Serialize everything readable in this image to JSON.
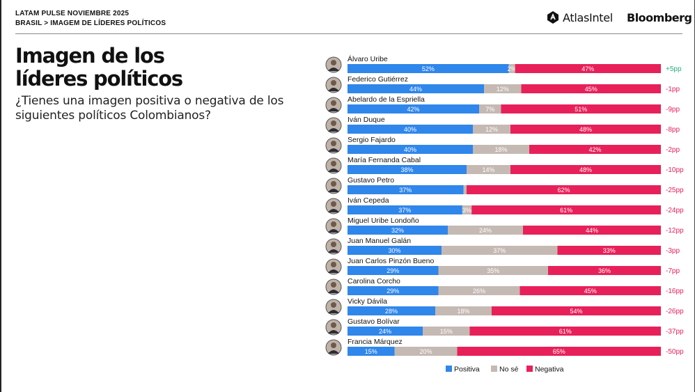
{
  "header": {
    "line1": "LATAM PULSE NOVIEMBRE 2025",
    "line2": "BRASIL > IMAGEM DE LÍDERES POLÍTICOS",
    "brand1": "AtlasIntel",
    "brand2": "Bloomberg"
  },
  "title": "Imagen de los líderes políticos",
  "subtitle": "¿Tienes una imagen positiva o negativa de los siguientes políticos Colombianos?",
  "colors": {
    "positiva": "#2f86eb",
    "no_se": "#c5b9b3",
    "negativa": "#e8205a",
    "net_positive": "#23b07d",
    "net_negative": "#e8205a"
  },
  "chart_data": {
    "type": "bar",
    "orientation": "horizontal",
    "stacked": true,
    "categories": [
      "Álvaro Uribe",
      "Federico Gutiérrez",
      "Abelardo de la Espriella",
      "Iván Duque",
      "Sergio Fajardo",
      "María Fernanda Cabal",
      "Gustavo Petro",
      "Iván Cepeda",
      "Miguel Uribe Londoño",
      "Juan Manuel Galán",
      "Juan Carlos Pinzón Bueno",
      "Carolina Corcho",
      "Vicky Dávila",
      "Gustavo Bolívar",
      "Francia Márquez"
    ],
    "series": [
      {
        "name": "Positiva",
        "values": [
          52,
          44,
          42,
          40,
          40,
          38,
          37,
          37,
          32,
          30,
          29,
          29,
          28,
          24,
          15
        ]
      },
      {
        "name": "No sé",
        "values": [
          2,
          12,
          7,
          12,
          18,
          14,
          1,
          3,
          24,
          37,
          35,
          26,
          18,
          15,
          20
        ]
      },
      {
        "name": "Negativa",
        "values": [
          47,
          45,
          51,
          48,
          42,
          48,
          62,
          61,
          44,
          33,
          36,
          45,
          54,
          61,
          65
        ]
      }
    ],
    "value_labels": [
      [
        "52%",
        "2%",
        "47%"
      ],
      [
        "44%",
        "12%",
        "45%"
      ],
      [
        "42%",
        "7%",
        "51%"
      ],
      [
        "40%",
        "12%",
        "48%"
      ],
      [
        "40%",
        "18%",
        "42%"
      ],
      [
        "38%",
        "14%",
        "48%"
      ],
      [
        "37%",
        "",
        "62%"
      ],
      [
        "37%",
        "3%",
        "61%"
      ],
      [
        "32%",
        "24%",
        "44%"
      ],
      [
        "30%",
        "37%",
        "33%"
      ],
      [
        "29%",
        "35%",
        "36%"
      ],
      [
        "29%",
        "26%",
        "45%"
      ],
      [
        "28%",
        "18%",
        "54%"
      ],
      [
        "24%",
        "15%",
        "61%"
      ],
      [
        "15%",
        "20%",
        "65%"
      ]
    ],
    "net": [
      "+5pp",
      "-1pp",
      "-9pp",
      "-8pp",
      "-2pp",
      "-10pp",
      "-25pp",
      "-24pp",
      "-12pp",
      "-3pp",
      "-7pp",
      "-16pp",
      "-26pp",
      "-37pp",
      "-50pp"
    ],
    "legend": [
      "Positiva",
      "No sé",
      "Negativa"
    ],
    "legend_position": "bottom"
  }
}
